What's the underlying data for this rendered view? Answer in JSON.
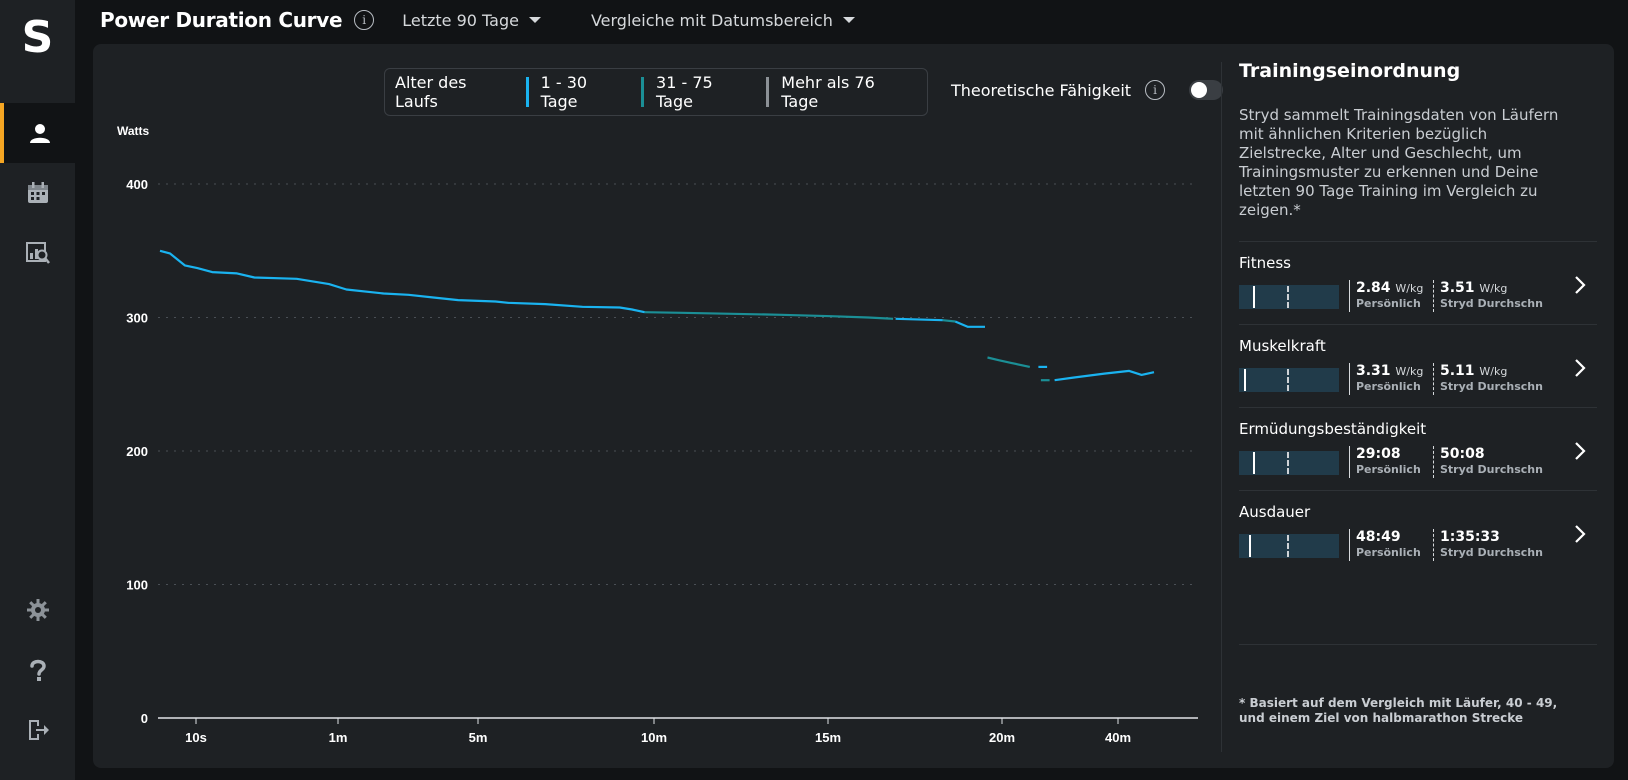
{
  "app": {
    "logo_letter": "S"
  },
  "sidebar": {
    "items": [
      {
        "icon": "user-icon",
        "active": true
      },
      {
        "icon": "calendar-icon",
        "active": false
      },
      {
        "icon": "analysis-icon",
        "active": false
      },
      {
        "icon": "gear-icon",
        "active": false
      },
      {
        "icon": "help-icon",
        "active": false
      },
      {
        "icon": "logout-icon",
        "active": false
      }
    ]
  },
  "header": {
    "title": "Power Duration Curve",
    "period": "Letzte 90 Tage",
    "compare": "Vergleiche mit Datumsbereich"
  },
  "legend": {
    "title": "Alter des Laufs",
    "items": [
      {
        "label": "1 - 30 Tage",
        "color": "#1ab3f0"
      },
      {
        "label": "31 - 75 Tage",
        "color": "#1b8f96"
      },
      {
        "label": "Mehr als 76 Tage",
        "color": "#8c9196"
      }
    ],
    "theoretical_label": "Theoretische Fähigkeit",
    "theoretical_on": false
  },
  "chart_data": {
    "type": "line",
    "ylabel": "Watts",
    "ylim": [
      0,
      400
    ],
    "yticks": [
      "0",
      "100",
      "200",
      "300",
      "400"
    ],
    "xticks": [
      "10s",
      "1m",
      "5m",
      "10m",
      "15m",
      "20m",
      "40m"
    ],
    "grid": true,
    "series": [
      {
        "name": "1 - 30 Tage",
        "color": "#1ab3f0",
        "segments": [
          [
            [
              0,
              350
            ],
            [
              0.8,
              348
            ],
            [
              2,
              339
            ],
            [
              3,
              337
            ],
            [
              4.2,
              334
            ],
            [
              6.2,
              333
            ],
            [
              7.6,
              330
            ],
            [
              11,
              329
            ],
            [
              13.6,
              325
            ],
            [
              15,
              321
            ],
            [
              18,
              318
            ],
            [
              20,
              317
            ],
            [
              22,
              315
            ],
            [
              24,
              313
            ],
            [
              27,
              312
            ],
            [
              28,
              311
            ],
            [
              31,
              310
            ],
            [
              34,
              308
            ],
            [
              37,
              307.5
            ],
            [
              38,
              306
            ],
            [
              39,
              304
            ]
          ],
          [
            [
              59.2,
              299
            ],
            [
              63,
              298
            ]
          ],
          [
            [
              64,
              297
            ],
            [
              65,
              293
            ],
            [
              66.4,
              293
            ]
          ],
          [
            [
              70.7,
              263
            ],
            [
              71.4,
              263
            ]
          ],
          [
            [
              72,
              253
            ],
            [
              73.5,
              255
            ],
            [
              76,
              258
            ],
            [
              78,
              260
            ],
            [
              79,
              257
            ],
            [
              80,
              259
            ]
          ]
        ]
      },
      {
        "name": "31 - 75 Tage",
        "color": "#1b8f96",
        "segments": [
          [
            [
              39,
              304
            ],
            [
              42,
              303.5
            ],
            [
              50,
              302
            ],
            [
              54,
              301
            ],
            [
              57,
              300
            ],
            [
              59,
              299
            ]
          ],
          [
            [
              63,
              298
            ],
            [
              64,
              297
            ]
          ],
          [
            [
              66.6,
              270
            ],
            [
              67.5,
              268
            ],
            [
              68.5,
              266
            ],
            [
              70,
              263
            ]
          ],
          [
            [
              70.9,
              253
            ],
            [
              71.6,
              253
            ]
          ]
        ]
      }
    ]
  },
  "panel": {
    "title": "Trainingseinordnung",
    "description": "Stryd sammelt Trainingsdaten von Läufern mit ähnlichen Kriterien bezüglich Zielstrecke, Alter und Geschlecht, um Trainingsmuster zu erkennen und Deine letzten 90 Tage Training im Vergleich zu zeigen.*",
    "metrics": [
      {
        "name": "Fitness",
        "personal_value": "2.84",
        "personal_unit": "W/kg",
        "personal_label": "Persönlich",
        "avg_value": "3.51",
        "avg_unit": "W/kg",
        "avg_label": "Stryd Durchschn",
        "personal_fraction": 0.14,
        "avg_fraction": 0.5
      },
      {
        "name": "Muskelkraft",
        "personal_value": "3.31",
        "personal_unit": "W/kg",
        "personal_label": "Persönlich",
        "avg_value": "5.11",
        "avg_unit": "W/kg",
        "avg_label": "Stryd Durchschn",
        "personal_fraction": 0.05,
        "avg_fraction": 0.5
      },
      {
        "name": "Ermüdungsbeständigkeit",
        "personal_value": "29:08",
        "personal_unit": "",
        "personal_label": "Persönlich",
        "avg_value": "50:08",
        "avg_unit": "",
        "avg_label": "Stryd Durchschn",
        "personal_fraction": 0.14,
        "avg_fraction": 0.5
      },
      {
        "name": "Ausdauer",
        "personal_value": "48:49",
        "personal_unit": "",
        "personal_label": "Persönlich",
        "avg_value": "1:35:33",
        "avg_unit": "",
        "avg_label": "Stryd Durchschn",
        "personal_fraction": 0.1,
        "avg_fraction": 0.5
      }
    ],
    "footnote": "* Basiert auf dem Vergleich mit Läufer, 40 - 49, und einem Ziel von halbmarathon Strecke"
  }
}
